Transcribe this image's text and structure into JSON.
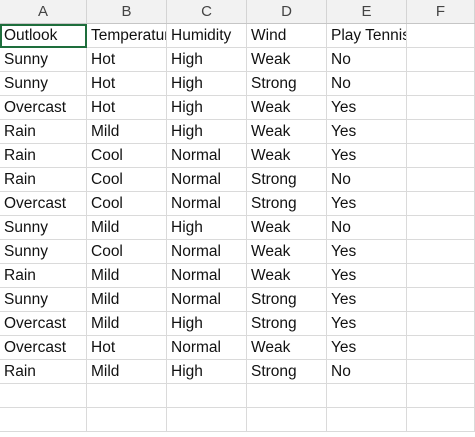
{
  "columns": [
    "A",
    "B",
    "C",
    "D",
    "E",
    "F"
  ],
  "rows": [
    [
      "Outlook",
      "Temperature",
      "Humidity",
      "Wind",
      "Play Tennis",
      ""
    ],
    [
      "Sunny",
      "Hot",
      "High",
      "Weak",
      "No",
      ""
    ],
    [
      "Sunny",
      "Hot",
      "High",
      "Strong",
      "No",
      ""
    ],
    [
      "Overcast",
      "Hot",
      "High",
      "Weak",
      "Yes",
      ""
    ],
    [
      "Rain",
      "Mild",
      "High",
      "Weak",
      "Yes",
      ""
    ],
    [
      "Rain",
      "Cool",
      "Normal",
      "Weak",
      "Yes",
      ""
    ],
    [
      "Rain",
      "Cool",
      "Normal",
      "Strong",
      "No",
      ""
    ],
    [
      "Overcast",
      "Cool",
      "Normal",
      "Strong",
      "Yes",
      ""
    ],
    [
      "Sunny",
      "Mild",
      "High",
      "Weak",
      "No",
      ""
    ],
    [
      "Sunny",
      "Cool",
      "Normal",
      "Weak",
      "Yes",
      ""
    ],
    [
      "Rain",
      "Mild",
      "Normal",
      "Weak",
      "Yes",
      ""
    ],
    [
      "Sunny",
      "Mild",
      "Normal",
      "Strong",
      "Yes",
      ""
    ],
    [
      "Overcast",
      "Mild",
      "High",
      "Strong",
      "Yes",
      ""
    ],
    [
      "Overcast",
      "Hot",
      "Normal",
      "Weak",
      "Yes",
      ""
    ],
    [
      "Rain",
      "Mild",
      "High",
      "Strong",
      "No",
      ""
    ],
    [
      "",
      "",
      "",
      "",
      "",
      ""
    ],
    [
      "",
      "",
      "",
      "",
      "",
      ""
    ]
  ],
  "selected_cell": "A1",
  "colors": {
    "selection": "#1e6e3c",
    "header_bg": "#f2f2f2",
    "gridline": "#dadada"
  }
}
